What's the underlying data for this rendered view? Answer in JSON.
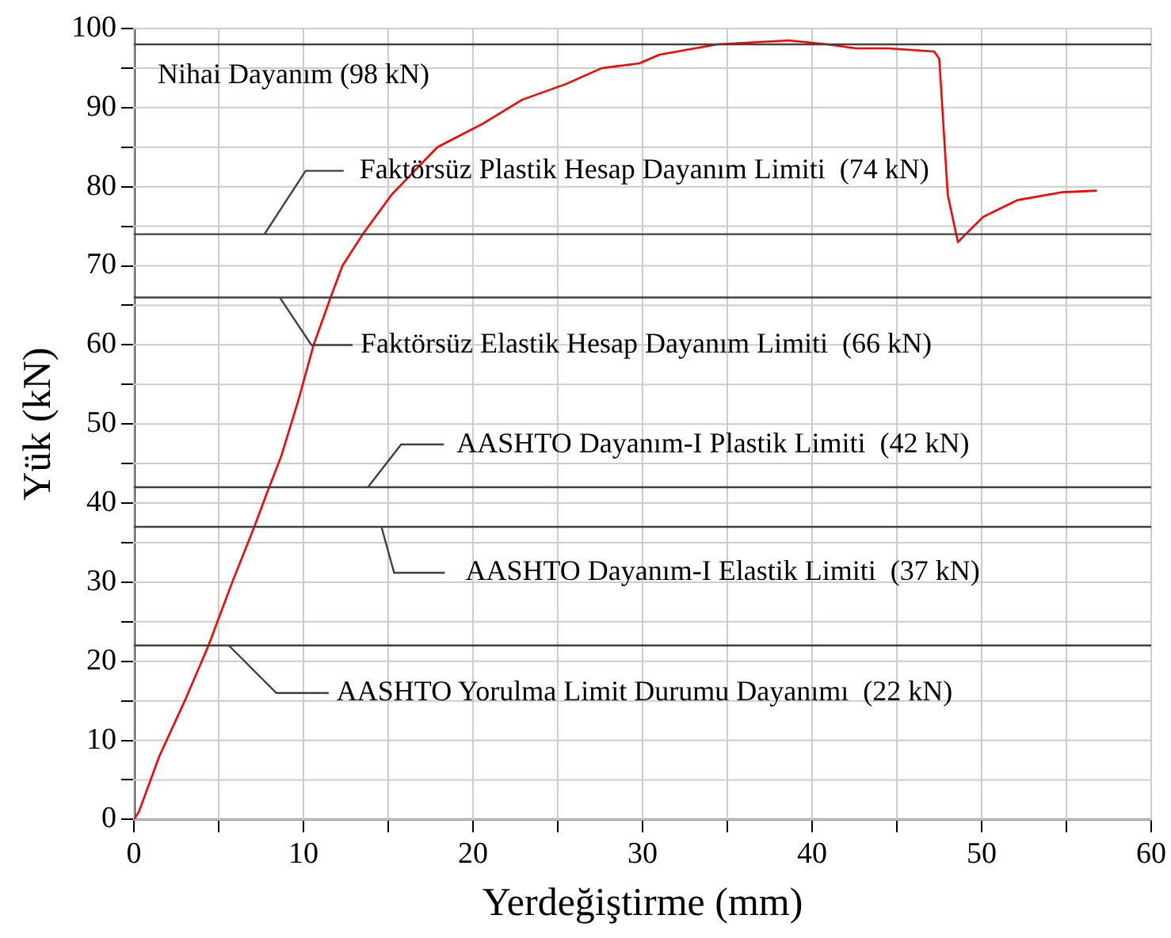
{
  "chart_data": {
    "type": "line",
    "xlabel": "Yerdeğiştirme (mm)",
    "ylabel": "Yük (kN)",
    "xlim": [
      0,
      60
    ],
    "xticks": [
      0,
      {
        "value": 5,
        "label": null
      },
      10,
      {
        "value": 15,
        "label": null
      },
      20,
      {
        "value": 25,
        "label": null
      },
      30,
      {
        "value": 35,
        "label": null
      },
      40,
      {
        "value": 45,
        "label": null
      },
      50,
      {
        "value": 55,
        "label": null
      },
      60
    ],
    "ylim": [
      0,
      100
    ],
    "yticks": [
      0,
      {
        "value": 5,
        "label": null
      },
      10,
      {
        "value": 15,
        "label": null
      },
      20,
      {
        "value": 25,
        "label": null
      },
      30,
      {
        "value": 35,
        "label": null
      },
      40,
      {
        "value": 45,
        "label": null
      },
      50,
      {
        "value": 55,
        "label": null
      },
      60,
      {
        "value": 65,
        "label": null
      },
      70,
      {
        "value": 75,
        "label": null
      },
      80,
      {
        "value": 85,
        "label": null
      },
      90,
      {
        "value": 95,
        "label": null
      },
      100
    ],
    "grid": true,
    "legend": false,
    "marker": "none",
    "line_style": "solid",
    "series": [
      {
        "color": "#ff0000",
        "x": [
          0,
          0.3,
          1.5,
          3,
          4.4,
          5.8,
          7.1,
          7.8,
          8.7,
          9.7,
          10.6,
          11.6,
          12.3,
          13.5,
          15.2,
          17.9,
          20.6,
          22.9,
          25.5,
          27.6,
          29.8,
          31,
          34.4,
          38.6,
          40.9,
          42.6,
          44.5,
          47.2,
          47.5,
          48,
          48.6,
          49.2,
          50.1,
          52.1,
          54.7,
          56.8
        ],
        "values": [
          0,
          1,
          8,
          15,
          22,
          30,
          37,
          41,
          46,
          53,
          60,
          66,
          70,
          74,
          79,
          85,
          88,
          91,
          93,
          95,
          95.6,
          96.7,
          98,
          98.5,
          98,
          97.5,
          97.5,
          97.1,
          96.2,
          79,
          73,
          74.3,
          76.2,
          78.3,
          79.3,
          79.5
        ]
      }
    ],
    "ref_lines": [
      {
        "axis": "y",
        "value": 98,
        "label": "Nihai Dayanım (98 kN)",
        "color": "#404040"
      },
      {
        "axis": "y",
        "value": 74,
        "label": "Faktörsüz Plastik Hesap Dayanım Limiti  (74 kN)",
        "color": "#404040"
      },
      {
        "axis": "y",
        "value": 66,
        "label": "Faktörsüz Elastik Hesap Dayanım Limiti  (66 kN)",
        "color": "#404040"
      },
      {
        "axis": "y",
        "value": 42,
        "label": "AASHTO Dayanım-I Plastik Limiti  (42 kN)",
        "color": "#404040"
      },
      {
        "axis": "y",
        "value": 37,
        "label": "AASHTO Dayanım-I Elastik Limiti  (37 kN)",
        "color": "#404040"
      },
      {
        "axis": "y",
        "value": 22,
        "label": "AASHTO Yorulma Limit Durumu Dayanımı  (22 kN)",
        "color": "#404040"
      }
    ]
  }
}
